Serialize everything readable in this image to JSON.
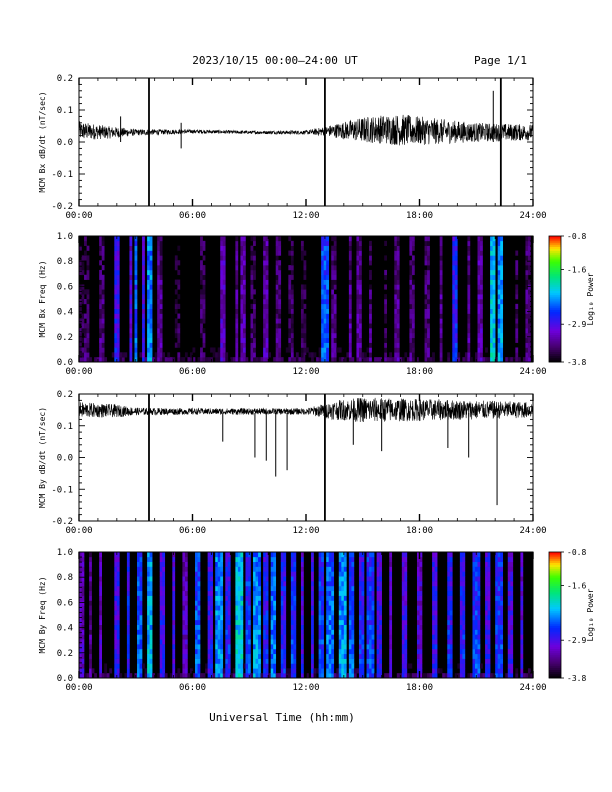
{
  "header": {
    "title": "2023/10/15  00:00–24:00 UT",
    "page": "Page 1/1"
  },
  "footer": {
    "xlabel": "Universal Time (hh:mm)"
  },
  "colors": {
    "background": "#ffffff",
    "axes": "#000000",
    "spectrogram_floor": "#000000"
  },
  "chart_data": [
    {
      "type": "line",
      "ylabel": "MCM Bx dB/dt (nT/sec)",
      "xlim": [
        0,
        24
      ],
      "ylim": [
        -0.2,
        0.2
      ],
      "x_unit": "hours UT",
      "xticks": [
        "00:00",
        "06:00",
        "12:00",
        "18:00",
        "24:00"
      ],
      "yticks": [
        "-0.2",
        "-0.1",
        "0.0",
        "0.1",
        "0.2"
      ],
      "series": [
        {
          "values_desc": "noisy time series",
          "baseline": [
            [
              0,
              0.035
            ],
            [
              1.5,
              0.03
            ],
            [
              3,
              0.03
            ],
            [
              6,
              0.033
            ],
            [
              9,
              0.03
            ],
            [
              12,
              0.03
            ],
            [
              13.5,
              0.035
            ],
            [
              16,
              0.04
            ],
            [
              18,
              0.035
            ],
            [
              21,
              0.03
            ],
            [
              24,
              0.03
            ]
          ],
          "amplitude": [
            [
              0,
              0.03
            ],
            [
              1.5,
              0.02
            ],
            [
              3,
              0.01
            ],
            [
              6,
              0.006
            ],
            [
              9,
              0.005
            ],
            [
              12,
              0.006
            ],
            [
              13,
              0.015
            ],
            [
              15,
              0.04
            ],
            [
              17,
              0.05
            ],
            [
              19,
              0.04
            ],
            [
              21,
              0.03
            ],
            [
              24,
              0.025
            ]
          ],
          "spikes": [
            [
              3.7,
              -0.2,
              0.2
            ],
            [
              13.0,
              -0.2,
              0.2
            ],
            [
              22.3,
              -0.2,
              0.2
            ],
            [
              21.9,
              0.0,
              0.16
            ],
            [
              2.2,
              0.0,
              0.08
            ],
            [
              5.4,
              -0.02,
              0.06
            ]
          ]
        }
      ]
    },
    {
      "type": "heatmap",
      "ylabel": "MCM Bx Freq (Hz)",
      "colorbar_label": "Log₁₀ Power",
      "xlim": [
        0,
        24
      ],
      "ylim": [
        0,
        1.0
      ],
      "xticks": [
        "00:00",
        "06:00",
        "12:00",
        "18:00",
        "24:00"
      ],
      "yticks": [
        "0.0",
        "0.2",
        "0.4",
        "0.6",
        "0.8",
        "1.0"
      ],
      "colorbar_ticks": [
        "-3.8",
        "-2.9",
        "-1.6",
        "-0.8"
      ],
      "clim": [
        -3.8,
        -0.8
      ],
      "stripes": [
        [
          0.1,
          0.2,
          -3.3
        ],
        [
          0.4,
          0.12,
          -3.2
        ],
        [
          1.2,
          0.1,
          -3.1
        ],
        [
          2.0,
          0.15,
          -2.5
        ],
        [
          2.7,
          0.1,
          -2.7
        ],
        [
          3.0,
          0.12,
          -2.2
        ],
        [
          3.4,
          0.12,
          -2.6
        ],
        [
          3.7,
          0.15,
          -2.0
        ],
        [
          4.3,
          0.1,
          -3.0
        ],
        [
          5.2,
          0.1,
          -3.3
        ],
        [
          6.5,
          0.15,
          -3.2
        ],
        [
          7.6,
          0.12,
          -2.8
        ],
        [
          8.3,
          0.1,
          -3.0
        ],
        [
          8.7,
          0.12,
          -2.9
        ],
        [
          9.2,
          0.1,
          -3.2
        ],
        [
          9.9,
          0.15,
          -2.9
        ],
        [
          10.5,
          0.1,
          -3.1
        ],
        [
          11.2,
          0.12,
          -3.2
        ],
        [
          11.9,
          0.1,
          -3.3
        ],
        [
          13.0,
          0.15,
          -2.2
        ],
        [
          13.5,
          0.1,
          -3.1
        ],
        [
          14.3,
          0.1,
          -3.0
        ],
        [
          14.8,
          0.12,
          -3.0
        ],
        [
          15.4,
          0.1,
          -3.1
        ],
        [
          16.2,
          0.1,
          -3.2
        ],
        [
          16.8,
          0.12,
          -3.0
        ],
        [
          17.6,
          0.1,
          -3.1
        ],
        [
          18.4,
          0.12,
          -3.1
        ],
        [
          19.1,
          0.1,
          -3.0
        ],
        [
          19.9,
          0.15,
          -2.4
        ],
        [
          20.6,
          0.1,
          -3.0
        ],
        [
          21.2,
          0.12,
          -2.9
        ],
        [
          21.9,
          0.15,
          -1.8
        ],
        [
          22.3,
          0.15,
          -2.0
        ],
        [
          23.1,
          0.1,
          -3.2
        ],
        [
          23.7,
          0.12,
          -3.1
        ]
      ]
    },
    {
      "type": "line",
      "ylabel": "MCM By dB/dt (nT/sec)",
      "xlim": [
        0,
        24
      ],
      "ylim": [
        -0.2,
        0.2
      ],
      "x_unit": "hours UT",
      "xticks": [
        "00:00",
        "06:00",
        "12:00",
        "18:00",
        "24:00"
      ],
      "yticks": [
        "-0.2",
        "-0.1",
        "0.0",
        "0.1",
        "0.2"
      ],
      "series": [
        {
          "values_desc": "noisy time series",
          "baseline": [
            [
              0,
              0.15
            ],
            [
              3,
              0.145
            ],
            [
              6,
              0.145
            ],
            [
              9,
              0.145
            ],
            [
              12,
              0.145
            ],
            [
              14,
              0.15
            ],
            [
              18,
              0.15
            ],
            [
              21,
              0.15
            ],
            [
              24,
              0.15
            ]
          ],
          "amplitude": [
            [
              0,
              0.025
            ],
            [
              2,
              0.02
            ],
            [
              3,
              0.012
            ],
            [
              6,
              0.01
            ],
            [
              9,
              0.01
            ],
            [
              12,
              0.01
            ],
            [
              13.5,
              0.03
            ],
            [
              15,
              0.04
            ],
            [
              18,
              0.035
            ],
            [
              21,
              0.03
            ],
            [
              24,
              0.025
            ]
          ],
          "spikes": [
            [
              3.7,
              -0.2,
              0.2
            ],
            [
              13.0,
              -0.2,
              0.2
            ],
            [
              22.1,
              -0.15,
              0.14
            ],
            [
              9.3,
              0.0,
              0.14
            ],
            [
              9.9,
              -0.01,
              0.14
            ],
            [
              11.0,
              -0.04,
              0.14
            ],
            [
              10.4,
              -0.06,
              0.14
            ],
            [
              14.5,
              0.04,
              0.14
            ],
            [
              7.6,
              0.05,
              0.14
            ],
            [
              16.0,
              0.02,
              0.14
            ],
            [
              19.5,
              0.03,
              0.14
            ],
            [
              20.6,
              0.0,
              0.14
            ]
          ]
        }
      ]
    },
    {
      "type": "heatmap",
      "ylabel": "MCM By Freq (Hz)",
      "colorbar_label": "Log₁₀ Power",
      "xlim": [
        0,
        24
      ],
      "ylim": [
        0,
        1.0
      ],
      "xticks": [
        "00:00",
        "06:00",
        "12:00",
        "18:00",
        "24:00"
      ],
      "yticks": [
        "0.0",
        "0.2",
        "0.4",
        "0.6",
        "0.8",
        "1.0"
      ],
      "colorbar_ticks": [
        "-3.8",
        "-2.9",
        "-1.6",
        "-0.8"
      ],
      "clim": [
        -3.8,
        -0.8
      ],
      "stripes": [
        [
          0.1,
          0.2,
          -2.8
        ],
        [
          0.6,
          0.12,
          -3.0
        ],
        [
          1.1,
          0.1,
          -2.8
        ],
        [
          2.0,
          0.15,
          -2.5
        ],
        [
          2.6,
          0.12,
          -2.4
        ],
        [
          3.2,
          0.15,
          -2.2
        ],
        [
          3.7,
          0.15,
          -1.9
        ],
        [
          4.4,
          0.12,
          -2.5
        ],
        [
          5.0,
          0.12,
          -2.6
        ],
        [
          5.6,
          0.1,
          -2.8
        ],
        [
          6.3,
          0.15,
          -2.2
        ],
        [
          6.9,
          0.12,
          -2.5
        ],
        [
          7.4,
          0.2,
          -2.0
        ],
        [
          7.9,
          0.12,
          -2.4
        ],
        [
          8.4,
          0.2,
          -1.8
        ],
        [
          8.9,
          0.15,
          -2.3
        ],
        [
          9.4,
          0.2,
          -2.0
        ],
        [
          9.9,
          0.12,
          -2.4
        ],
        [
          10.3,
          0.15,
          -2.1
        ],
        [
          10.8,
          0.12,
          -2.4
        ],
        [
          11.3,
          0.15,
          -2.3
        ],
        [
          11.8,
          0.12,
          -2.6
        ],
        [
          12.3,
          0.1,
          -2.5
        ],
        [
          12.8,
          0.15,
          -2.3
        ],
        [
          13.3,
          0.2,
          -2.1
        ],
        [
          13.9,
          0.2,
          -2.0
        ],
        [
          14.4,
          0.15,
          -2.2
        ],
        [
          14.9,
          0.12,
          -2.4
        ],
        [
          15.4,
          0.15,
          -2.3
        ],
        [
          15.9,
          0.12,
          -2.5
        ],
        [
          16.5,
          0.1,
          -2.7
        ],
        [
          17.2,
          0.12,
          -2.6
        ],
        [
          18.0,
          0.1,
          -2.7
        ],
        [
          18.8,
          0.12,
          -2.5
        ],
        [
          19.6,
          0.15,
          -2.4
        ],
        [
          20.3,
          0.12,
          -2.4
        ],
        [
          21.0,
          0.15,
          -2.3
        ],
        [
          21.6,
          0.12,
          -2.5
        ],
        [
          22.2,
          0.15,
          -2.3
        ],
        [
          22.8,
          0.12,
          -2.6
        ],
        [
          23.4,
          0.1,
          -2.7
        ]
      ]
    }
  ]
}
